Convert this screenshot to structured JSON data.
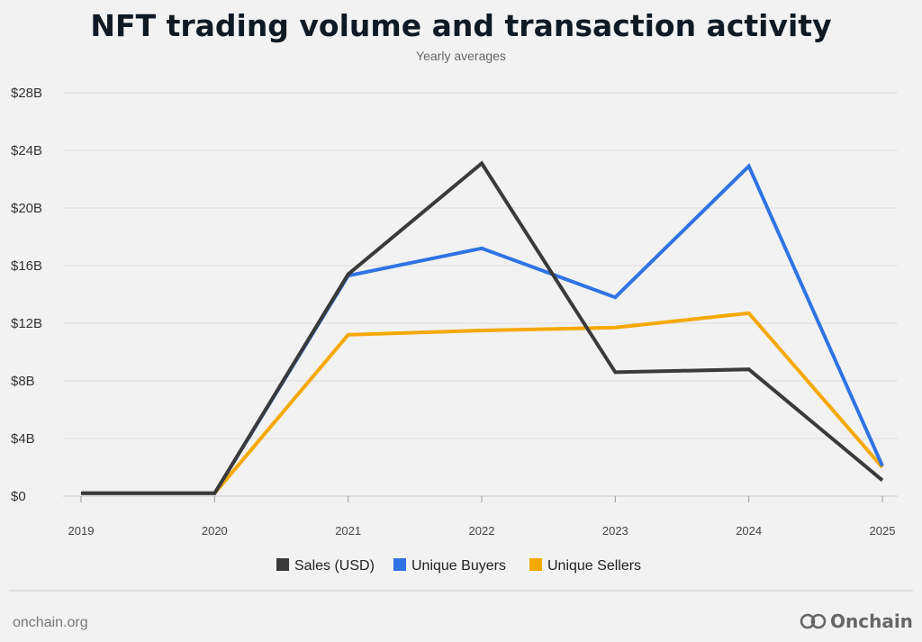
{
  "header": {
    "title": "NFT trading volume and transaction activity",
    "subtitle": "Yearly averages"
  },
  "footer": {
    "source": "onchain.org",
    "brand": "Onchain"
  },
  "chart_data": {
    "type": "line",
    "title": "NFT trading volume and transaction activity",
    "subtitle": "Yearly averages",
    "x": [
      "2019",
      "2020",
      "2021",
      "2022",
      "2023",
      "2024",
      "2025"
    ],
    "yticks": [
      "$0",
      "$4B",
      "$8B",
      "$12B",
      "$16B",
      "$20B",
      "$24B",
      "$28B"
    ],
    "ylim": [
      0,
      28
    ],
    "grid": true,
    "legend_position": "bottom",
    "series": [
      {
        "name": "Sales (USD)",
        "color": "#3a3a3a",
        "values": [
          0.2,
          0.2,
          15.4,
          23.1,
          8.6,
          8.8,
          1.1
        ]
      },
      {
        "name": "Unique Buyers",
        "color": "#2f73e4",
        "values": [
          0.2,
          0.2,
          15.3,
          17.2,
          13.8,
          22.9,
          2.1
        ]
      },
      {
        "name": "Unique Sellers",
        "color": "#f5a800",
        "values": [
          0.2,
          0.2,
          11.2,
          11.5,
          11.7,
          12.7,
          2.0
        ]
      }
    ]
  }
}
